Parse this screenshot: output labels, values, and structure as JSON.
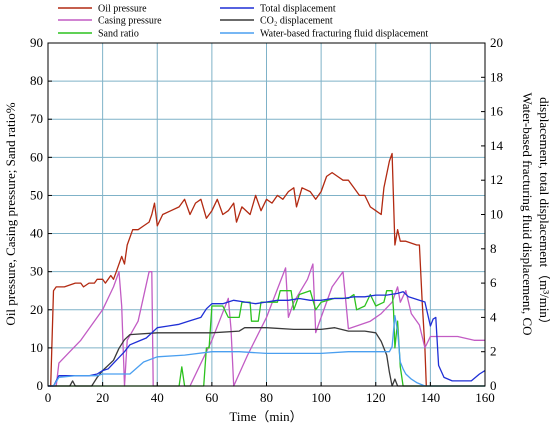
{
  "chart_data": {
    "type": "line",
    "xlabel": "Time（min）",
    "ylabel_left": "Oil pressure, Casing pressure; Sand    ratio%",
    "ylabel_right_lines": [
      "Water-based  fracturing  fluid  displacement,  CO",
      "displacement, total displacement（m³/min）"
    ],
    "xlim": [
      0,
      160
    ],
    "ylim_left": [
      0,
      90
    ],
    "ylim_right": [
      0,
      20
    ],
    "x_ticks": [
      0,
      20,
      40,
      60,
      80,
      100,
      120,
      140,
      160
    ],
    "y_left_ticks": [
      0,
      10,
      20,
      30,
      40,
      50,
      60,
      70,
      80,
      90
    ],
    "y_right_ticks": [
      0,
      2,
      4,
      6,
      8,
      10,
      12,
      14,
      16,
      18,
      20
    ],
    "grid": true,
    "legend_position": "top",
    "legend": [
      {
        "label": "Oil pressure",
        "color": "#b22a12"
      },
      {
        "label": "Total displacement",
        "color": "#1f2fd6"
      },
      {
        "label": "Casing pressure",
        "color": "#c25cc4"
      },
      {
        "label": "CO₂ displacement",
        "color": "#3a3a3a"
      },
      {
        "label": "Sand ratio",
        "color": "#2cc21e"
      },
      {
        "label": "Water-based fracturing fluid displacement",
        "color": "#4a9ff0"
      }
    ],
    "series": [
      {
        "name": "Oil pressure",
        "axis": "left",
        "color": "#b22a12",
        "points": [
          [
            0,
            0
          ],
          [
            1,
            0
          ],
          [
            2,
            25
          ],
          [
            3,
            26
          ],
          [
            4,
            26
          ],
          [
            6,
            26
          ],
          [
            8,
            26.5
          ],
          [
            10,
            27
          ],
          [
            12,
            27
          ],
          [
            13,
            26
          ],
          [
            15,
            27
          ],
          [
            17,
            27
          ],
          [
            18,
            28
          ],
          [
            20,
            28
          ],
          [
            21,
            27
          ],
          [
            23,
            29
          ],
          [
            24,
            28
          ],
          [
            25,
            30
          ],
          [
            27,
            34
          ],
          [
            28,
            32
          ],
          [
            29,
            37
          ],
          [
            31,
            41
          ],
          [
            33,
            41
          ],
          [
            35,
            42
          ],
          [
            37,
            43
          ],
          [
            38,
            45
          ],
          [
            39,
            48
          ],
          [
            40,
            42
          ],
          [
            42,
            45
          ],
          [
            45,
            46
          ],
          [
            48,
            47
          ],
          [
            50,
            49
          ],
          [
            52,
            45
          ],
          [
            54,
            48
          ],
          [
            56,
            49
          ],
          [
            58,
            44
          ],
          [
            60,
            46
          ],
          [
            62,
            49
          ],
          [
            64,
            45
          ],
          [
            66,
            46
          ],
          [
            68,
            48
          ],
          [
            69,
            43
          ],
          [
            71,
            47
          ],
          [
            74,
            45
          ],
          [
            76,
            50
          ],
          [
            78,
            46
          ],
          [
            80,
            49
          ],
          [
            82,
            48
          ],
          [
            84,
            50
          ],
          [
            86,
            49
          ],
          [
            88,
            51
          ],
          [
            90,
            52
          ],
          [
            91,
            47
          ],
          [
            93,
            52
          ],
          [
            96,
            51
          ],
          [
            98,
            49
          ],
          [
            100,
            51
          ],
          [
            102,
            55
          ],
          [
            104,
            56
          ],
          [
            106,
            55
          ],
          [
            108,
            54
          ],
          [
            110,
            54
          ],
          [
            112,
            52
          ],
          [
            114,
            50
          ],
          [
            116,
            50
          ],
          [
            118,
            47
          ],
          [
            120,
            46
          ],
          [
            122,
            45
          ],
          [
            123,
            52
          ],
          [
            125,
            59
          ],
          [
            126,
            61
          ],
          [
            127,
            37
          ],
          [
            128,
            41
          ],
          [
            129,
            38
          ],
          [
            131,
            38
          ],
          [
            135,
            37
          ],
          [
            136,
            37
          ],
          [
            137,
            22
          ],
          [
            138,
            10
          ],
          [
            138.5,
            0
          ]
        ]
      },
      {
        "name": "Casing pressure",
        "axis": "left",
        "color": "#c25cc4",
        "points": [
          [
            0,
            0
          ],
          [
            3,
            0
          ],
          [
            4,
            6
          ],
          [
            8,
            9
          ],
          [
            12,
            12
          ],
          [
            16,
            16
          ],
          [
            20,
            20
          ],
          [
            24,
            26
          ],
          [
            26,
            30
          ],
          [
            27,
            21
          ],
          [
            28,
            0
          ],
          [
            29,
            12
          ],
          [
            33,
            17
          ],
          [
            37,
            30
          ],
          [
            38,
            30
          ],
          [
            38.5,
            0
          ],
          [
            42,
            0
          ],
          [
            45,
            0
          ],
          [
            52,
            0
          ],
          [
            60,
            12
          ],
          [
            66,
            23
          ],
          [
            67,
            15
          ],
          [
            68,
            0
          ],
          [
            73,
            8
          ],
          [
            80,
            18
          ],
          [
            87,
            31
          ],
          [
            88,
            18
          ],
          [
            90,
            22
          ],
          [
            95,
            28
          ],
          [
            97,
            32
          ],
          [
            98,
            14
          ],
          [
            100,
            18
          ],
          [
            104,
            26
          ],
          [
            108,
            30
          ],
          [
            110,
            15
          ],
          [
            114,
            16
          ],
          [
            118,
            17
          ],
          [
            122,
            19
          ],
          [
            126,
            22
          ],
          [
            128,
            26
          ],
          [
            129,
            22
          ],
          [
            131,
            25
          ],
          [
            133,
            19
          ],
          [
            136,
            16
          ],
          [
            138,
            10
          ],
          [
            140,
            13
          ],
          [
            144,
            13
          ],
          [
            150,
            13
          ],
          [
            156,
            12
          ],
          [
            160,
            12
          ]
        ]
      },
      {
        "name": "Sand ratio",
        "axis": "left",
        "color": "#2cc21e",
        "points": [
          [
            0,
            0
          ],
          [
            48,
            0
          ],
          [
            49,
            5
          ],
          [
            50,
            0
          ],
          [
            57,
            0
          ],
          [
            58,
            10
          ],
          [
            59,
            10
          ],
          [
            60,
            21
          ],
          [
            64,
            21
          ],
          [
            66,
            18
          ],
          [
            70,
            18
          ],
          [
            71,
            22
          ],
          [
            74,
            22
          ],
          [
            74.5,
            17
          ],
          [
            77,
            17
          ],
          [
            78,
            22
          ],
          [
            84,
            22
          ],
          [
            85,
            25
          ],
          [
            89,
            25
          ],
          [
            90,
            20
          ],
          [
            92,
            24
          ],
          [
            96,
            25
          ],
          [
            98,
            20
          ],
          [
            100,
            22
          ],
          [
            105,
            23
          ],
          [
            110,
            23
          ],
          [
            112,
            24
          ],
          [
            113,
            20
          ],
          [
            116,
            21
          ],
          [
            118,
            24
          ],
          [
            120,
            21
          ],
          [
            123,
            22
          ],
          [
            124,
            25
          ],
          [
            126,
            25
          ],
          [
            126.5,
            20
          ],
          [
            127,
            10
          ],
          [
            128,
            17
          ],
          [
            129,
            5
          ],
          [
            130,
            0
          ],
          [
            160,
            0
          ]
        ]
      },
      {
        "name": "CO₂ displacement",
        "axis": "right",
        "color": "#3a3a3a",
        "points": [
          [
            0,
            0
          ],
          [
            8,
            0
          ],
          [
            9,
            0.3
          ],
          [
            10,
            0
          ],
          [
            16,
            0
          ],
          [
            18,
            0.5
          ],
          [
            20,
            0.9
          ],
          [
            24,
            1.5
          ],
          [
            26,
            2.2
          ],
          [
            28,
            2.7
          ],
          [
            30,
            3
          ],
          [
            40,
            3.1
          ],
          [
            50,
            3.1
          ],
          [
            60,
            3.1
          ],
          [
            70,
            3.2
          ],
          [
            72,
            3.4
          ],
          [
            80,
            3.4
          ],
          [
            90,
            3.3
          ],
          [
            100,
            3.3
          ],
          [
            105,
            3.4
          ],
          [
            110,
            3.2
          ],
          [
            116,
            3.2
          ],
          [
            120,
            3.1
          ],
          [
            122,
            2.6
          ],
          [
            124,
            1.8
          ],
          [
            125,
            0.8
          ],
          [
            126,
            0
          ],
          [
            127,
            0.4
          ],
          [
            128,
            0
          ],
          [
            160,
            0
          ]
        ]
      },
      {
        "name": "Total displacement",
        "axis": "right",
        "color": "#1f2fd6",
        "points": [
          [
            0,
            0
          ],
          [
            2,
            0
          ],
          [
            4,
            0.6
          ],
          [
            10,
            0.6
          ],
          [
            15,
            0.6
          ],
          [
            18,
            0.7
          ],
          [
            20,
            0.9
          ],
          [
            22,
            1
          ],
          [
            25,
            1.5
          ],
          [
            28,
            2
          ],
          [
            30,
            2.4
          ],
          [
            33,
            2.6
          ],
          [
            36,
            2.8
          ],
          [
            40,
            3.4
          ],
          [
            44,
            3.5
          ],
          [
            48,
            3.6
          ],
          [
            52,
            3.8
          ],
          [
            56,
            4
          ],
          [
            58,
            4.5
          ],
          [
            60,
            4.8
          ],
          [
            64,
            4.8
          ],
          [
            68,
            5
          ],
          [
            72,
            4.9
          ],
          [
            76,
            4.8
          ],
          [
            80,
            4.9
          ],
          [
            84,
            5
          ],
          [
            88,
            5
          ],
          [
            92,
            5.1
          ],
          [
            96,
            5
          ],
          [
            100,
            5
          ],
          [
            104,
            5.1
          ],
          [
            108,
            5.1
          ],
          [
            112,
            5.2
          ],
          [
            116,
            5.2
          ],
          [
            120,
            5.3
          ],
          [
            124,
            5.3
          ],
          [
            128,
            5.4
          ],
          [
            130,
            5.5
          ],
          [
            132,
            5.2
          ],
          [
            134,
            5.1
          ],
          [
            136,
            5
          ],
          [
            138,
            4.9
          ],
          [
            140,
            3.5
          ],
          [
            141,
            3.9
          ],
          [
            142,
            4
          ],
          [
            143,
            1.2
          ],
          [
            145,
            0.5
          ],
          [
            148,
            0.3
          ],
          [
            152,
            0.3
          ],
          [
            155,
            0.3
          ],
          [
            158,
            0.7
          ],
          [
            160,
            0.9
          ]
        ]
      },
      {
        "name": "Water-based fracturing fluid displacement",
        "axis": "right",
        "color": "#4a9ff0",
        "points": [
          [
            0,
            0
          ],
          [
            2,
            0
          ],
          [
            4,
            0.5
          ],
          [
            10,
            0.6
          ],
          [
            18,
            0.6
          ],
          [
            20,
            0.7
          ],
          [
            30,
            0.7
          ],
          [
            35,
            1.4
          ],
          [
            40,
            1.7
          ],
          [
            50,
            1.8
          ],
          [
            60,
            2
          ],
          [
            70,
            2
          ],
          [
            80,
            1.9
          ],
          [
            90,
            1.9
          ],
          [
            100,
            1.9
          ],
          [
            110,
            2
          ],
          [
            120,
            2
          ],
          [
            125,
            2
          ],
          [
            126,
            2.3
          ],
          [
            127,
            4.1
          ],
          [
            128,
            3.2
          ],
          [
            129,
            1.4
          ],
          [
            130,
            1
          ],
          [
            131,
            0.7
          ],
          [
            133,
            0.4
          ],
          [
            135,
            0.2
          ],
          [
            138,
            0
          ],
          [
            160,
            0
          ]
        ]
      }
    ]
  }
}
